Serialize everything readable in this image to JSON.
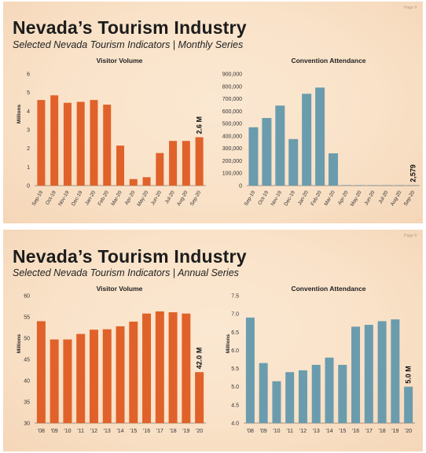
{
  "monthly": {
    "page_label": "Page 9",
    "title": "Nevada’s Tourism Industry",
    "subtitle": "Selected Nevada Tourism Indicators | Monthly Series"
  },
  "annual": {
    "page_label": "Page 8",
    "title": "Nevada’s Tourism Industry",
    "subtitle": "Selected Nevada Tourism Indicators | Annual Series"
  },
  "colors": {
    "visitor": "#e0622a",
    "convention": "#6a9cae"
  },
  "chart_data": [
    {
      "id": "monthly-visitor",
      "type": "bar",
      "title": "Visitor Volume",
      "ylabel": "Millions",
      "categories": [
        "Sep-19",
        "Oct-19",
        "Nov-19",
        "Dec-19",
        "Jan-20",
        "Feb-20",
        "Mar-20",
        "Apr-20",
        "May-20",
        "Jun-20",
        "Jul-20",
        "Aug-20",
        "Sep-20"
      ],
      "values": [
        4.6,
        4.85,
        4.45,
        4.5,
        4.6,
        4.35,
        2.15,
        0.35,
        0.45,
        1.75,
        2.4,
        2.4,
        2.6
      ],
      "ylim": [
        0,
        6
      ],
      "yticks": [
        "0",
        "1",
        "2",
        "3",
        "4",
        "5",
        "6"
      ],
      "annotation": "2.6 M",
      "color": "#e0622a"
    },
    {
      "id": "monthly-convention",
      "type": "bar",
      "title": "Convention Attendance",
      "ylabel": "",
      "categories": [
        "Sep-19",
        "Oct-19",
        "Nov-19",
        "Dec-19",
        "Jan-20",
        "Feb-20",
        "Mar-20",
        "Apr-20",
        "May-20",
        "Jun-20",
        "Jul-20",
        "Aug-20",
        "Sep-20"
      ],
      "values": [
        470000,
        545000,
        645000,
        375000,
        740000,
        790000,
        260000,
        0,
        0,
        0,
        0,
        0,
        2579
      ],
      "ylim": [
        0,
        900000
      ],
      "yticks": [
        "0",
        "100,000",
        "200,000",
        "300,000",
        "400,000",
        "500,000",
        "600,000",
        "700,000",
        "800,000",
        "900,000"
      ],
      "annotation": "2,579",
      "color": "#6a9cae"
    },
    {
      "id": "annual-visitor",
      "type": "bar",
      "title": "Visitor Volume",
      "ylabel": "Millions",
      "categories": [
        "'08",
        "'09",
        "'10",
        "'11",
        "'12",
        "'13",
        "'14",
        "'15",
        "'16",
        "'17",
        "'18",
        "'19",
        "'20"
      ],
      "values": [
        54.0,
        49.7,
        49.7,
        51.0,
        52.0,
        52.1,
        52.8,
        53.9,
        55.8,
        56.3,
        56.1,
        55.8,
        42.0
      ],
      "ylim": [
        30,
        60
      ],
      "yticks": [
        "30",
        "35",
        "40",
        "45",
        "50",
        "55",
        "60"
      ],
      "annotation": "42.0 M",
      "color": "#e0622a"
    },
    {
      "id": "annual-convention",
      "type": "bar",
      "title": "Convention Attendance",
      "ylabel": "Millions",
      "categories": [
        "'08",
        "'09",
        "'10",
        "'11",
        "'12",
        "'13",
        "'14",
        "'15",
        "'16",
        "'17",
        "'18",
        "'19",
        "'20"
      ],
      "values": [
        6.9,
        5.65,
        5.15,
        5.4,
        5.45,
        5.6,
        5.8,
        5.6,
        6.65,
        6.7,
        6.8,
        6.85,
        5.0
      ],
      "ylim": [
        4.0,
        7.5
      ],
      "yticks": [
        "4.0",
        "4.5",
        "5.0",
        "5.5",
        "6.0",
        "6.5",
        "7.0",
        "7.5"
      ],
      "annotation": "5.0 M",
      "color": "#6a9cae"
    }
  ]
}
